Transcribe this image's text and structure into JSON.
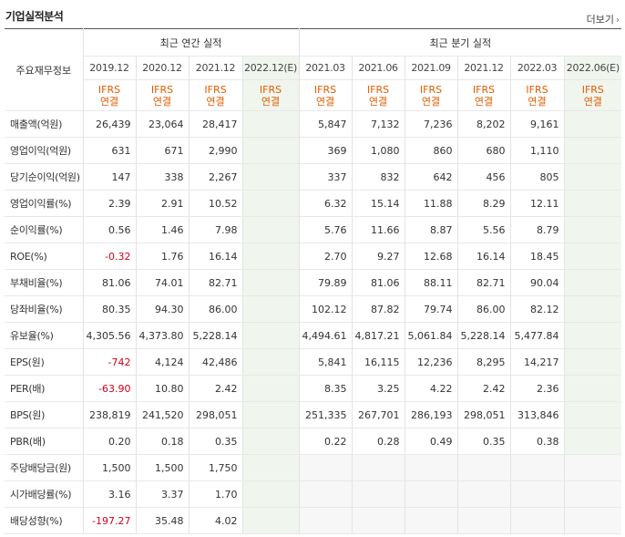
{
  "header": {
    "title": "기업실적분석",
    "more_label": "더보기",
    "more_icon": "chevron-right-icon"
  },
  "table": {
    "row_header": "주요재무정보",
    "group_annual": "최근 연간 실적",
    "group_quarterly": "최근 분기 실적",
    "annual_periods": [
      "2019.12",
      "2020.12",
      "2021.12",
      "2022.12(E)"
    ],
    "quarterly_periods": [
      "2021.03",
      "2021.06",
      "2021.09",
      "2021.12",
      "2022.03",
      "2022.06(E)"
    ],
    "standard_top": "IFRS",
    "standard_bottom": "연결",
    "rows": [
      {
        "label": "매출액(억원)",
        "annual": [
          "26,439",
          "23,064",
          "28,417",
          ""
        ],
        "quarterly": [
          "5,847",
          "7,132",
          "7,236",
          "8,202",
          "9,161",
          ""
        ]
      },
      {
        "label": "영업이익(억원)",
        "annual": [
          "631",
          "671",
          "2,990",
          ""
        ],
        "quarterly": [
          "369",
          "1,080",
          "860",
          "680",
          "1,110",
          ""
        ]
      },
      {
        "label": "당기순이익(억원)",
        "annual": [
          "147",
          "338",
          "2,267",
          ""
        ],
        "quarterly": [
          "337",
          "832",
          "642",
          "456",
          "805",
          ""
        ]
      },
      {
        "label": "영업이익률(%)",
        "annual": [
          "2.39",
          "2.91",
          "10.52",
          ""
        ],
        "quarterly": [
          "6.32",
          "15.14",
          "11.88",
          "8.29",
          "12.11",
          ""
        ]
      },
      {
        "label": "순이익률(%)",
        "annual": [
          "0.56",
          "1.46",
          "7.98",
          ""
        ],
        "quarterly": [
          "5.76",
          "11.66",
          "8.87",
          "5.56",
          "8.79",
          ""
        ]
      },
      {
        "label": "ROE(%)",
        "annual": [
          "-0.32",
          "1.76",
          "16.14",
          ""
        ],
        "quarterly": [
          "2.70",
          "9.27",
          "12.68",
          "16.14",
          "18.45",
          ""
        ]
      },
      {
        "label": "부채비율(%)",
        "annual": [
          "81.06",
          "74.01",
          "82.71",
          ""
        ],
        "quarterly": [
          "79.89",
          "81.06",
          "88.11",
          "82.71",
          "90.04",
          ""
        ]
      },
      {
        "label": "당좌비율(%)",
        "annual": [
          "80.35",
          "94.30",
          "86.00",
          ""
        ],
        "quarterly": [
          "102.12",
          "87.82",
          "79.74",
          "86.00",
          "82.12",
          ""
        ]
      },
      {
        "label": "유보율(%)",
        "annual": [
          "4,305.56",
          "4,373.80",
          "5,228.14",
          ""
        ],
        "quarterly": [
          "4,494.61",
          "4,817.21",
          "5,061.84",
          "5,228.14",
          "5,477.84",
          ""
        ]
      },
      {
        "label": "EPS(원)",
        "annual": [
          "-742",
          "4,124",
          "42,486",
          ""
        ],
        "quarterly": [
          "5,841",
          "16,115",
          "12,236",
          "8,295",
          "14,217",
          ""
        ]
      },
      {
        "label": "PER(배)",
        "annual": [
          "-63.90",
          "10.80",
          "2.42",
          ""
        ],
        "quarterly": [
          "8.35",
          "3.25",
          "4.22",
          "2.42",
          "2.36",
          ""
        ]
      },
      {
        "label": "BPS(원)",
        "annual": [
          "238,819",
          "241,520",
          "298,051",
          ""
        ],
        "quarterly": [
          "251,335",
          "267,701",
          "286,193",
          "298,051",
          "313,846",
          ""
        ]
      },
      {
        "label": "PBR(배)",
        "annual": [
          "0.20",
          "0.18",
          "0.35",
          ""
        ],
        "quarterly": [
          "0.22",
          "0.28",
          "0.49",
          "0.35",
          "0.38",
          ""
        ]
      },
      {
        "label": "주당배당금(원)",
        "annual": [
          "1,500",
          "1,500",
          "1,750",
          ""
        ],
        "quarterly": [
          "",
          "",
          "",
          "",
          "",
          ""
        ]
      },
      {
        "label": "시가배당률(%)",
        "annual": [
          "3.16",
          "3.37",
          "1.70",
          ""
        ],
        "quarterly": [
          "",
          "",
          "",
          "",
          "",
          ""
        ]
      },
      {
        "label": "배당성향(%)",
        "annual": [
          "-197.27",
          "35.48",
          "4.02",
          ""
        ],
        "quarterly": [
          "",
          "",
          "",
          "",
          "",
          ""
        ]
      }
    ],
    "negative_color": "#d0021b",
    "standard_color": "#e35b00",
    "estimate_bg": "#f0f6ee"
  }
}
